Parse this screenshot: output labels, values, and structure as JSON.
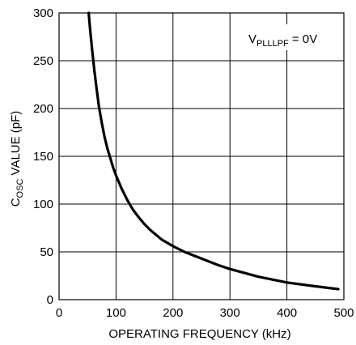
{
  "chart_data": {
    "type": "line",
    "title": "",
    "xlabel": "OPERATING FREQUENCY (kHz)",
    "ylabel_main": "C",
    "ylabel_sub": "OSC",
    "ylabel_rest": " VALUE (pF)",
    "xlim": [
      0,
      500
    ],
    "ylim": [
      0,
      300
    ],
    "x_ticks": [
      0,
      100,
      200,
      300,
      400,
      500
    ],
    "y_ticks": [
      0,
      50,
      100,
      150,
      200,
      250,
      300
    ],
    "grid": true,
    "annotation": {
      "main": "V",
      "sub": "PLLLPF",
      "rest": " = 0V"
    },
    "series": [
      {
        "color": "#000000",
        "x": [
          52,
          55,
          58,
          62,
          66,
          70,
          75,
          80,
          85,
          90,
          95,
          100,
          110,
          120,
          130,
          140,
          150,
          160,
          180,
          200,
          220,
          250,
          280,
          300,
          350,
          400,
          450,
          490
        ],
        "y": [
          300,
          280,
          262,
          240,
          220,
          202,
          185,
          170,
          158,
          148,
          138,
          130,
          116,
          104,
          94,
          86,
          79,
          73,
          63,
          56,
          50,
          43,
          36,
          32,
          24,
          18,
          14,
          11
        ]
      }
    ]
  }
}
